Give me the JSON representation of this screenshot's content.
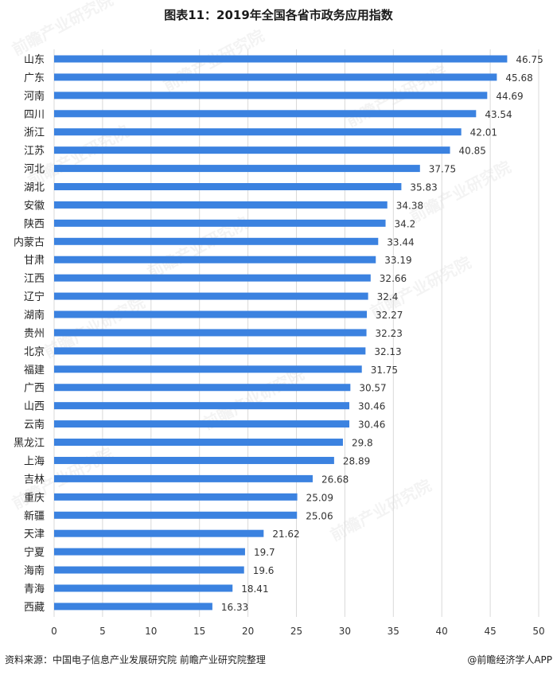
{
  "chart_data": {
    "type": "bar",
    "orientation": "horizontal",
    "title": "图表11：2019年全国各省市政务应用指数",
    "categories": [
      "山东",
      "广东",
      "河南",
      "四川",
      "浙江",
      "江苏",
      "河北",
      "湖北",
      "安徽",
      "陕西",
      "内蒙古",
      "甘肃",
      "江西",
      "辽宁",
      "湖南",
      "贵州",
      "北京",
      "福建",
      "广西",
      "山西",
      "云南",
      "黑龙江",
      "上海",
      "吉林",
      "重庆",
      "新疆",
      "天津",
      "宁夏",
      "海南",
      "青海",
      "西藏"
    ],
    "values": [
      46.75,
      45.68,
      44.69,
      43.54,
      42.01,
      40.85,
      37.75,
      35.83,
      34.38,
      34.2,
      33.44,
      33.19,
      32.66,
      32.4,
      32.27,
      32.23,
      32.13,
      31.75,
      30.57,
      30.46,
      30.46,
      29.8,
      28.89,
      26.68,
      25.09,
      25.06,
      21.62,
      19.7,
      19.6,
      18.41,
      16.33
    ],
    "value_labels": [
      "46.75",
      "45.68",
      "44.69",
      "43.54",
      "42.01",
      "40.85",
      "37.75",
      "35.83",
      "34.38",
      "34.2",
      "33.44",
      "33.19",
      "32.66",
      "32.4",
      "32.27",
      "32.23",
      "32.13",
      "31.75",
      "30.57",
      "30.46",
      "30.46",
      "29.8",
      "28.89",
      "26.68",
      "25.09",
      "25.06",
      "21.62",
      "19.7",
      "19.6",
      "18.41",
      "16.33"
    ],
    "xlim": [
      0,
      50
    ],
    "xticks": [
      "0",
      "5",
      "10",
      "15",
      "20",
      "25",
      "30",
      "35",
      "40",
      "45",
      "50"
    ],
    "xlabel": "",
    "ylabel": "",
    "grid": "vertical",
    "bar_color": "#3b82e0",
    "grid_color": "#d9d9d9"
  },
  "footer": {
    "source": "资料来源：中国电子信息产业发展研究院 前瞻产业研究院整理",
    "brand": "@前瞻经济学人APP"
  },
  "watermark": "前瞻产业研究院"
}
